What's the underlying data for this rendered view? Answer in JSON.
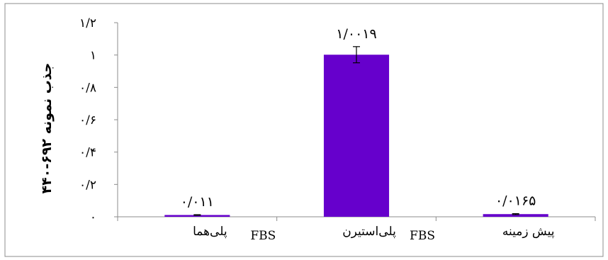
{
  "chart_data": {
    "type": "bar",
    "ylabel": "جذب نمونه ۶۹۲-۴۴۰",
    "ylim": [
      0,
      1.2
    ],
    "yticks": [
      0,
      0.2,
      0.4,
      0.6,
      0.8,
      1,
      1.2
    ],
    "ytick_labels": [
      "۰",
      "۰/۲",
      "۰/۴",
      "۰/۶",
      "۰/۸",
      "۱",
      "۱/۲"
    ],
    "categories": [
      "پلی‌هما",
      "پلی‌استیرن",
      "پیش زمینه"
    ],
    "category_suffix": [
      "FBS",
      "FBS",
      ""
    ],
    "values": [
      0.011,
      1.0019,
      0.0165
    ],
    "value_labels": [
      "۰/۰۱۱",
      "۱/۰۰۱۹",
      "۰/۰۱۶۵"
    ],
    "errors": [
      0.002,
      0.05,
      0.003
    ],
    "bar_color": "#6600cc",
    "grid": false,
    "legend": "none"
  }
}
